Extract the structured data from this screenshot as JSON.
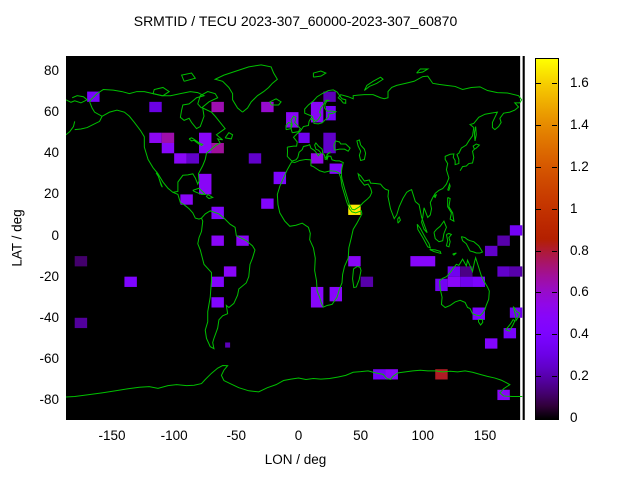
{
  "title": "SRMTID / TECU 2023-307_60000-2023-307_60870",
  "axes": {
    "x_label": "LON / deg",
    "y_label": "LAT / deg",
    "x_ticks": [
      -150,
      -100,
      -50,
      0,
      50,
      100,
      150
    ],
    "x_tick_labels": [
      "-150",
      "-100",
      "-50",
      "0",
      "50",
      "100",
      "150"
    ],
    "y_ticks": [
      80,
      60,
      40,
      20,
      0,
      -20,
      -40,
      -60,
      -80
    ],
    "y_tick_labels": [
      "80",
      "60",
      "40",
      "20",
      "0",
      "-20",
      "-40",
      "-60",
      "-80"
    ]
  },
  "colorbar": {
    "min": 0,
    "max": 1.72,
    "ticks": [
      0,
      0.2,
      0.4,
      0.6,
      0.8,
      1.0,
      1.2,
      1.4,
      1.6
    ],
    "tick_labels": [
      "0",
      "0.2",
      "0.4",
      "0.6",
      "0.8",
      "1",
      "1.2",
      "1.4",
      "1.6"
    ],
    "palette": "gnuplot pm3d default (black-blue-violet-red-yellow, rgbformulae 7,5,15)"
  },
  "map_style": {
    "background": "#000000",
    "coastline_color": "#00c000",
    "frame_color": "#000000"
  },
  "chart_data": {
    "type": "heatmap",
    "title": "SRMTID / TECU 2023-307_60000-2023-307_60870",
    "xlabel": "LON / deg",
    "ylabel": "LAT / deg",
    "xlim": [
      -187,
      182.2
    ],
    "ylim": [
      -89.7,
      87.3
    ],
    "grid": false,
    "legend_position": "right-colorbar",
    "cbar_range": [
      0,
      1.72
    ],
    "cells_format": [
      "lon_min",
      "lon_max",
      "lat_min",
      "lat_max",
      "tecu_value"
    ],
    "cells": [
      [
        -170,
        -160,
        65,
        70,
        0.38
      ],
      [
        -120,
        -110,
        60,
        65,
        0.3
      ],
      [
        -70,
        -60,
        60,
        65,
        0.65
      ],
      [
        -30,
        -20,
        60,
        65,
        0.6
      ],
      [
        -10,
        0,
        52.5,
        60,
        0.5
      ],
      [
        10,
        20,
        55,
        65,
        0.5
      ],
      [
        22,
        30,
        56,
        63,
        0.38
      ],
      [
        20,
        30,
        65,
        70,
        0.22
      ],
      [
        -120,
        -110,
        45,
        50,
        0.52
      ],
      [
        -110,
        -100,
        45,
        50,
        0.66
      ],
      [
        -110,
        -100,
        40,
        45,
        0.48
      ],
      [
        -100,
        -90,
        35,
        40,
        0.5
      ],
      [
        -90,
        -80,
        35,
        40,
        0.25
      ],
      [
        -80,
        -70,
        40,
        50,
        0.5
      ],
      [
        -70,
        -60,
        40,
        45,
        0.68
      ],
      [
        -40,
        -30,
        35,
        40,
        0.25
      ],
      [
        -20,
        -10,
        25,
        31,
        0.42
      ],
      [
        -30,
        -20,
        13,
        18,
        0.45
      ],
      [
        -80,
        -70,
        20,
        30,
        0.5
      ],
      [
        -95,
        -85,
        15,
        20,
        0.5
      ],
      [
        -70,
        -60,
        8,
        14,
        0.45
      ],
      [
        0,
        9,
        45,
        50,
        0.33
      ],
      [
        20,
        30,
        40,
        50,
        0.25
      ],
      [
        10,
        20,
        35,
        40,
        0.55
      ],
      [
        25,
        35,
        30,
        35,
        0.45
      ],
      [
        40,
        50,
        10,
        15,
        1.67
      ],
      [
        -70,
        -60,
        -5,
        0,
        0.5
      ],
      [
        -50,
        -40,
        -5,
        0,
        0.5
      ],
      [
        -60,
        -50,
        -20,
        -15,
        0.5
      ],
      [
        -70,
        -60,
        -25,
        -20,
        0.45
      ],
      [
        -70,
        -60,
        -35,
        -30,
        0.45
      ],
      [
        -59,
        -55,
        -54.5,
        -52,
        0.22
      ],
      [
        -180,
        -170,
        -15,
        -10,
        0.12
      ],
      [
        -140,
        -130,
        -25,
        -20,
        0.42
      ],
      [
        -180,
        -170,
        -45,
        -40,
        0.18
      ],
      [
        10,
        20,
        -35,
        -25,
        0.48
      ],
      [
        25,
        35,
        -32,
        -25,
        0.48
      ],
      [
        40,
        50,
        -15,
        -10,
        0.5
      ],
      [
        50,
        60,
        -25,
        -20,
        0.2
      ],
      [
        90,
        110,
        -15,
        -10,
        0.48
      ],
      [
        110,
        120,
        -27,
        -21,
        0.35
      ],
      [
        120,
        130,
        -20,
        -15,
        0.33
      ],
      [
        130,
        140,
        -20,
        -15,
        0.15
      ],
      [
        120,
        130,
        -25,
        -20,
        0.5
      ],
      [
        130,
        140,
        -25,
        -20,
        0.33
      ],
      [
        140,
        150,
        -25,
        -20,
        0.4
      ],
      [
        140,
        150,
        -41,
        -35,
        0.4
      ],
      [
        150,
        160,
        -10,
        -5,
        0.25
      ],
      [
        160,
        170,
        -20,
        -15,
        0.25
      ],
      [
        170,
        180,
        -20,
        -15,
        0.2
      ],
      [
        160,
        170,
        -5,
        0,
        0.2
      ],
      [
        170,
        180,
        0,
        5,
        0.35
      ],
      [
        170,
        180,
        -40,
        -35,
        0.35
      ],
      [
        165,
        175,
        -50,
        -45,
        0.38
      ],
      [
        150,
        160,
        -55,
        -50,
        0.45
      ],
      [
        60,
        70,
        -70,
        -65,
        0.35
      ],
      [
        70,
        80,
        -70,
        -65,
        0.5
      ],
      [
        110,
        120,
        -70,
        -65,
        0.82
      ],
      [
        160,
        170,
        -80,
        -75,
        0.5
      ]
    ]
  }
}
